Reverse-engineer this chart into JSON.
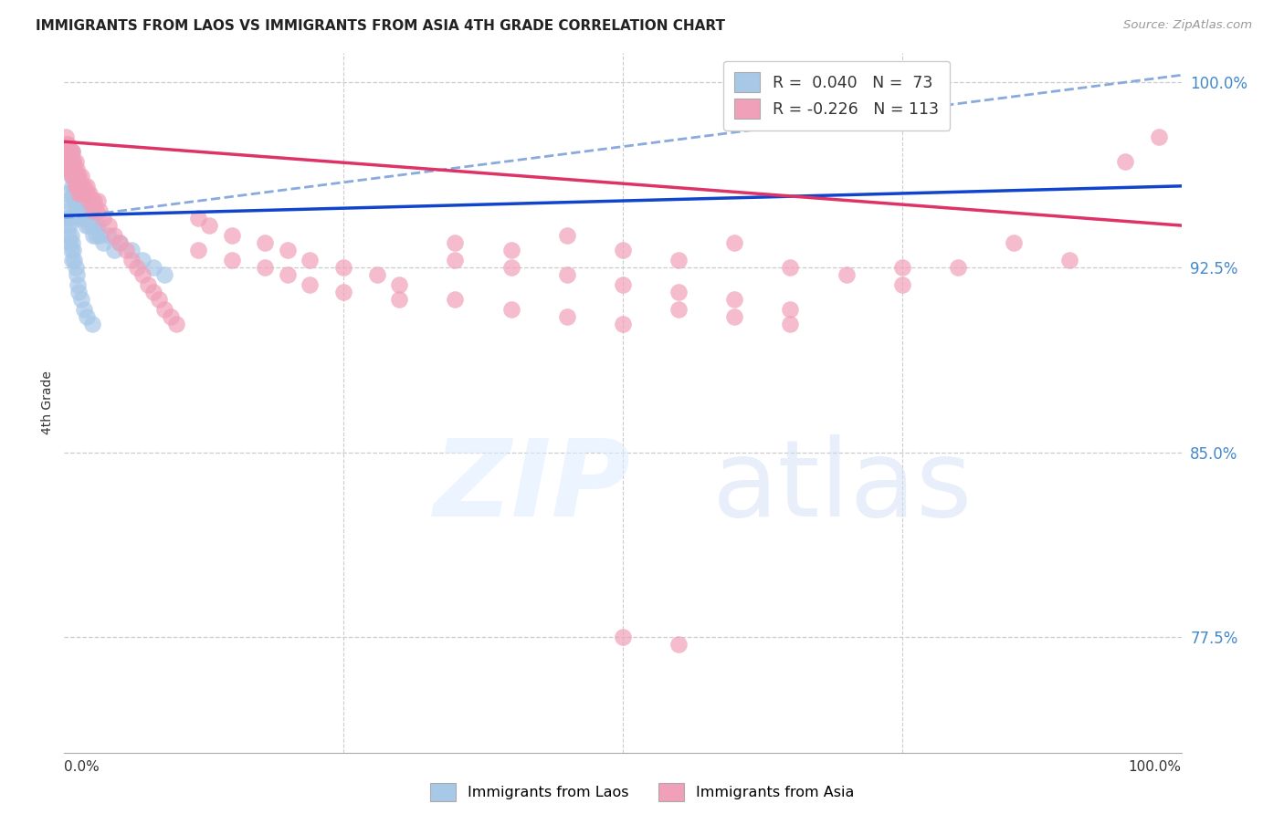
{
  "title": "IMMIGRANTS FROM LAOS VS IMMIGRANTS FROM ASIA 4TH GRADE CORRELATION CHART",
  "source": "Source: ZipAtlas.com",
  "ylabel": "4th Grade",
  "xlim": [
    0.0,
    1.0
  ],
  "ylim": [
    0.728,
    1.012
  ],
  "yticks": [
    0.775,
    0.85,
    0.925,
    1.0
  ],
  "ytick_labels": [
    "77.5%",
    "85.0%",
    "92.5%",
    "100.0%"
  ],
  "blue_color": "#a8c8e8",
  "pink_color": "#f0a0b8",
  "trendline_blue_color": "#1144cc",
  "trendline_pink_color": "#dd3366",
  "trendline_dashed_color": "#88aadd",
  "grid_color": "#cccccc",
  "blue_trend": [
    0.0,
    0.946,
    1.0,
    0.958
  ],
  "pink_trend": [
    0.0,
    0.976,
    1.0,
    0.942
  ],
  "dashed_trend": [
    0.0,
    0.945,
    1.0,
    1.003
  ],
  "blue_scatter_x": [
    0.003,
    0.004,
    0.005,
    0.005,
    0.006,
    0.006,
    0.007,
    0.007,
    0.007,
    0.008,
    0.008,
    0.008,
    0.009,
    0.009,
    0.009,
    0.01,
    0.01,
    0.01,
    0.011,
    0.011,
    0.012,
    0.012,
    0.013,
    0.014,
    0.014,
    0.015,
    0.015,
    0.016,
    0.016,
    0.017,
    0.018,
    0.019,
    0.02,
    0.021,
    0.022,
    0.023,
    0.025,
    0.026,
    0.027,
    0.028,
    0.03,
    0.032,
    0.035,
    0.04,
    0.045,
    0.05,
    0.06,
    0.07,
    0.08,
    0.09,
    0.001,
    0.002,
    0.002,
    0.003,
    0.003,
    0.004,
    0.004,
    0.005,
    0.005,
    0.006,
    0.006,
    0.007,
    0.007,
    0.008,
    0.009,
    0.01,
    0.011,
    0.012,
    0.013,
    0.015,
    0.018,
    0.02,
    0.025
  ],
  "blue_scatter_y": [
    0.972,
    0.968,
    0.972,
    0.965,
    0.968,
    0.962,
    0.972,
    0.965,
    0.958,
    0.968,
    0.962,
    0.955,
    0.965,
    0.958,
    0.952,
    0.962,
    0.956,
    0.948,
    0.958,
    0.952,
    0.955,
    0.948,
    0.952,
    0.958,
    0.945,
    0.955,
    0.948,
    0.952,
    0.945,
    0.948,
    0.945,
    0.942,
    0.948,
    0.945,
    0.942,
    0.945,
    0.942,
    0.938,
    0.942,
    0.938,
    0.942,
    0.938,
    0.935,
    0.938,
    0.932,
    0.935,
    0.932,
    0.928,
    0.925,
    0.922,
    0.955,
    0.952,
    0.945,
    0.948,
    0.942,
    0.945,
    0.938,
    0.942,
    0.935,
    0.938,
    0.932,
    0.935,
    0.928,
    0.932,
    0.928,
    0.925,
    0.922,
    0.918,
    0.915,
    0.912,
    0.908,
    0.905,
    0.902
  ],
  "pink_scatter_x": [
    0.001,
    0.001,
    0.001,
    0.002,
    0.002,
    0.002,
    0.003,
    0.003,
    0.003,
    0.004,
    0.004,
    0.004,
    0.005,
    0.005,
    0.005,
    0.006,
    0.006,
    0.006,
    0.007,
    0.007,
    0.007,
    0.008,
    0.008,
    0.008,
    0.009,
    0.009,
    0.01,
    0.01,
    0.01,
    0.011,
    0.011,
    0.012,
    0.012,
    0.013,
    0.013,
    0.014,
    0.015,
    0.015,
    0.016,
    0.017,
    0.018,
    0.019,
    0.02,
    0.021,
    0.022,
    0.023,
    0.025,
    0.026,
    0.027,
    0.028,
    0.03,
    0.032,
    0.035,
    0.04,
    0.045,
    0.05,
    0.055,
    0.06,
    0.065,
    0.07,
    0.075,
    0.08,
    0.085,
    0.09,
    0.095,
    0.1,
    0.12,
    0.13,
    0.15,
    0.18,
    0.2,
    0.22,
    0.25,
    0.28,
    0.3,
    0.35,
    0.4,
    0.45,
    0.5,
    0.55,
    0.6,
    0.65,
    0.7,
    0.75,
    0.8,
    0.85,
    0.9,
    0.95,
    0.98,
    0.12,
    0.15,
    0.18,
    0.2,
    0.22,
    0.25,
    0.3,
    0.35,
    0.4,
    0.45,
    0.5,
    0.55,
    0.6,
    0.65,
    0.35,
    0.4,
    0.45,
    0.5,
    0.55,
    0.6,
    0.65,
    0.5,
    0.55,
    0.75
  ],
  "pink_scatter_y": [
    0.978,
    0.972,
    0.968,
    0.975,
    0.972,
    0.968,
    0.975,
    0.972,
    0.968,
    0.972,
    0.968,
    0.965,
    0.972,
    0.968,
    0.965,
    0.972,
    0.968,
    0.965,
    0.972,
    0.968,
    0.962,
    0.968,
    0.965,
    0.962,
    0.965,
    0.962,
    0.968,
    0.962,
    0.958,
    0.965,
    0.958,
    0.962,
    0.958,
    0.962,
    0.955,
    0.958,
    0.962,
    0.955,
    0.958,
    0.955,
    0.958,
    0.955,
    0.958,
    0.955,
    0.952,
    0.955,
    0.952,
    0.948,
    0.952,
    0.948,
    0.952,
    0.948,
    0.945,
    0.942,
    0.938,
    0.935,
    0.932,
    0.928,
    0.925,
    0.922,
    0.918,
    0.915,
    0.912,
    0.908,
    0.905,
    0.902,
    0.945,
    0.942,
    0.938,
    0.935,
    0.932,
    0.928,
    0.925,
    0.922,
    0.918,
    0.935,
    0.932,
    0.938,
    0.932,
    0.928,
    0.935,
    0.925,
    0.922,
    0.918,
    0.925,
    0.935,
    0.928,
    0.968,
    0.978,
    0.932,
    0.928,
    0.925,
    0.922,
    0.918,
    0.915,
    0.912,
    0.928,
    0.925,
    0.922,
    0.918,
    0.915,
    0.912,
    0.908,
    0.912,
    0.908,
    0.905,
    0.902,
    0.908,
    0.905,
    0.902,
    0.775,
    0.772,
    0.925
  ]
}
